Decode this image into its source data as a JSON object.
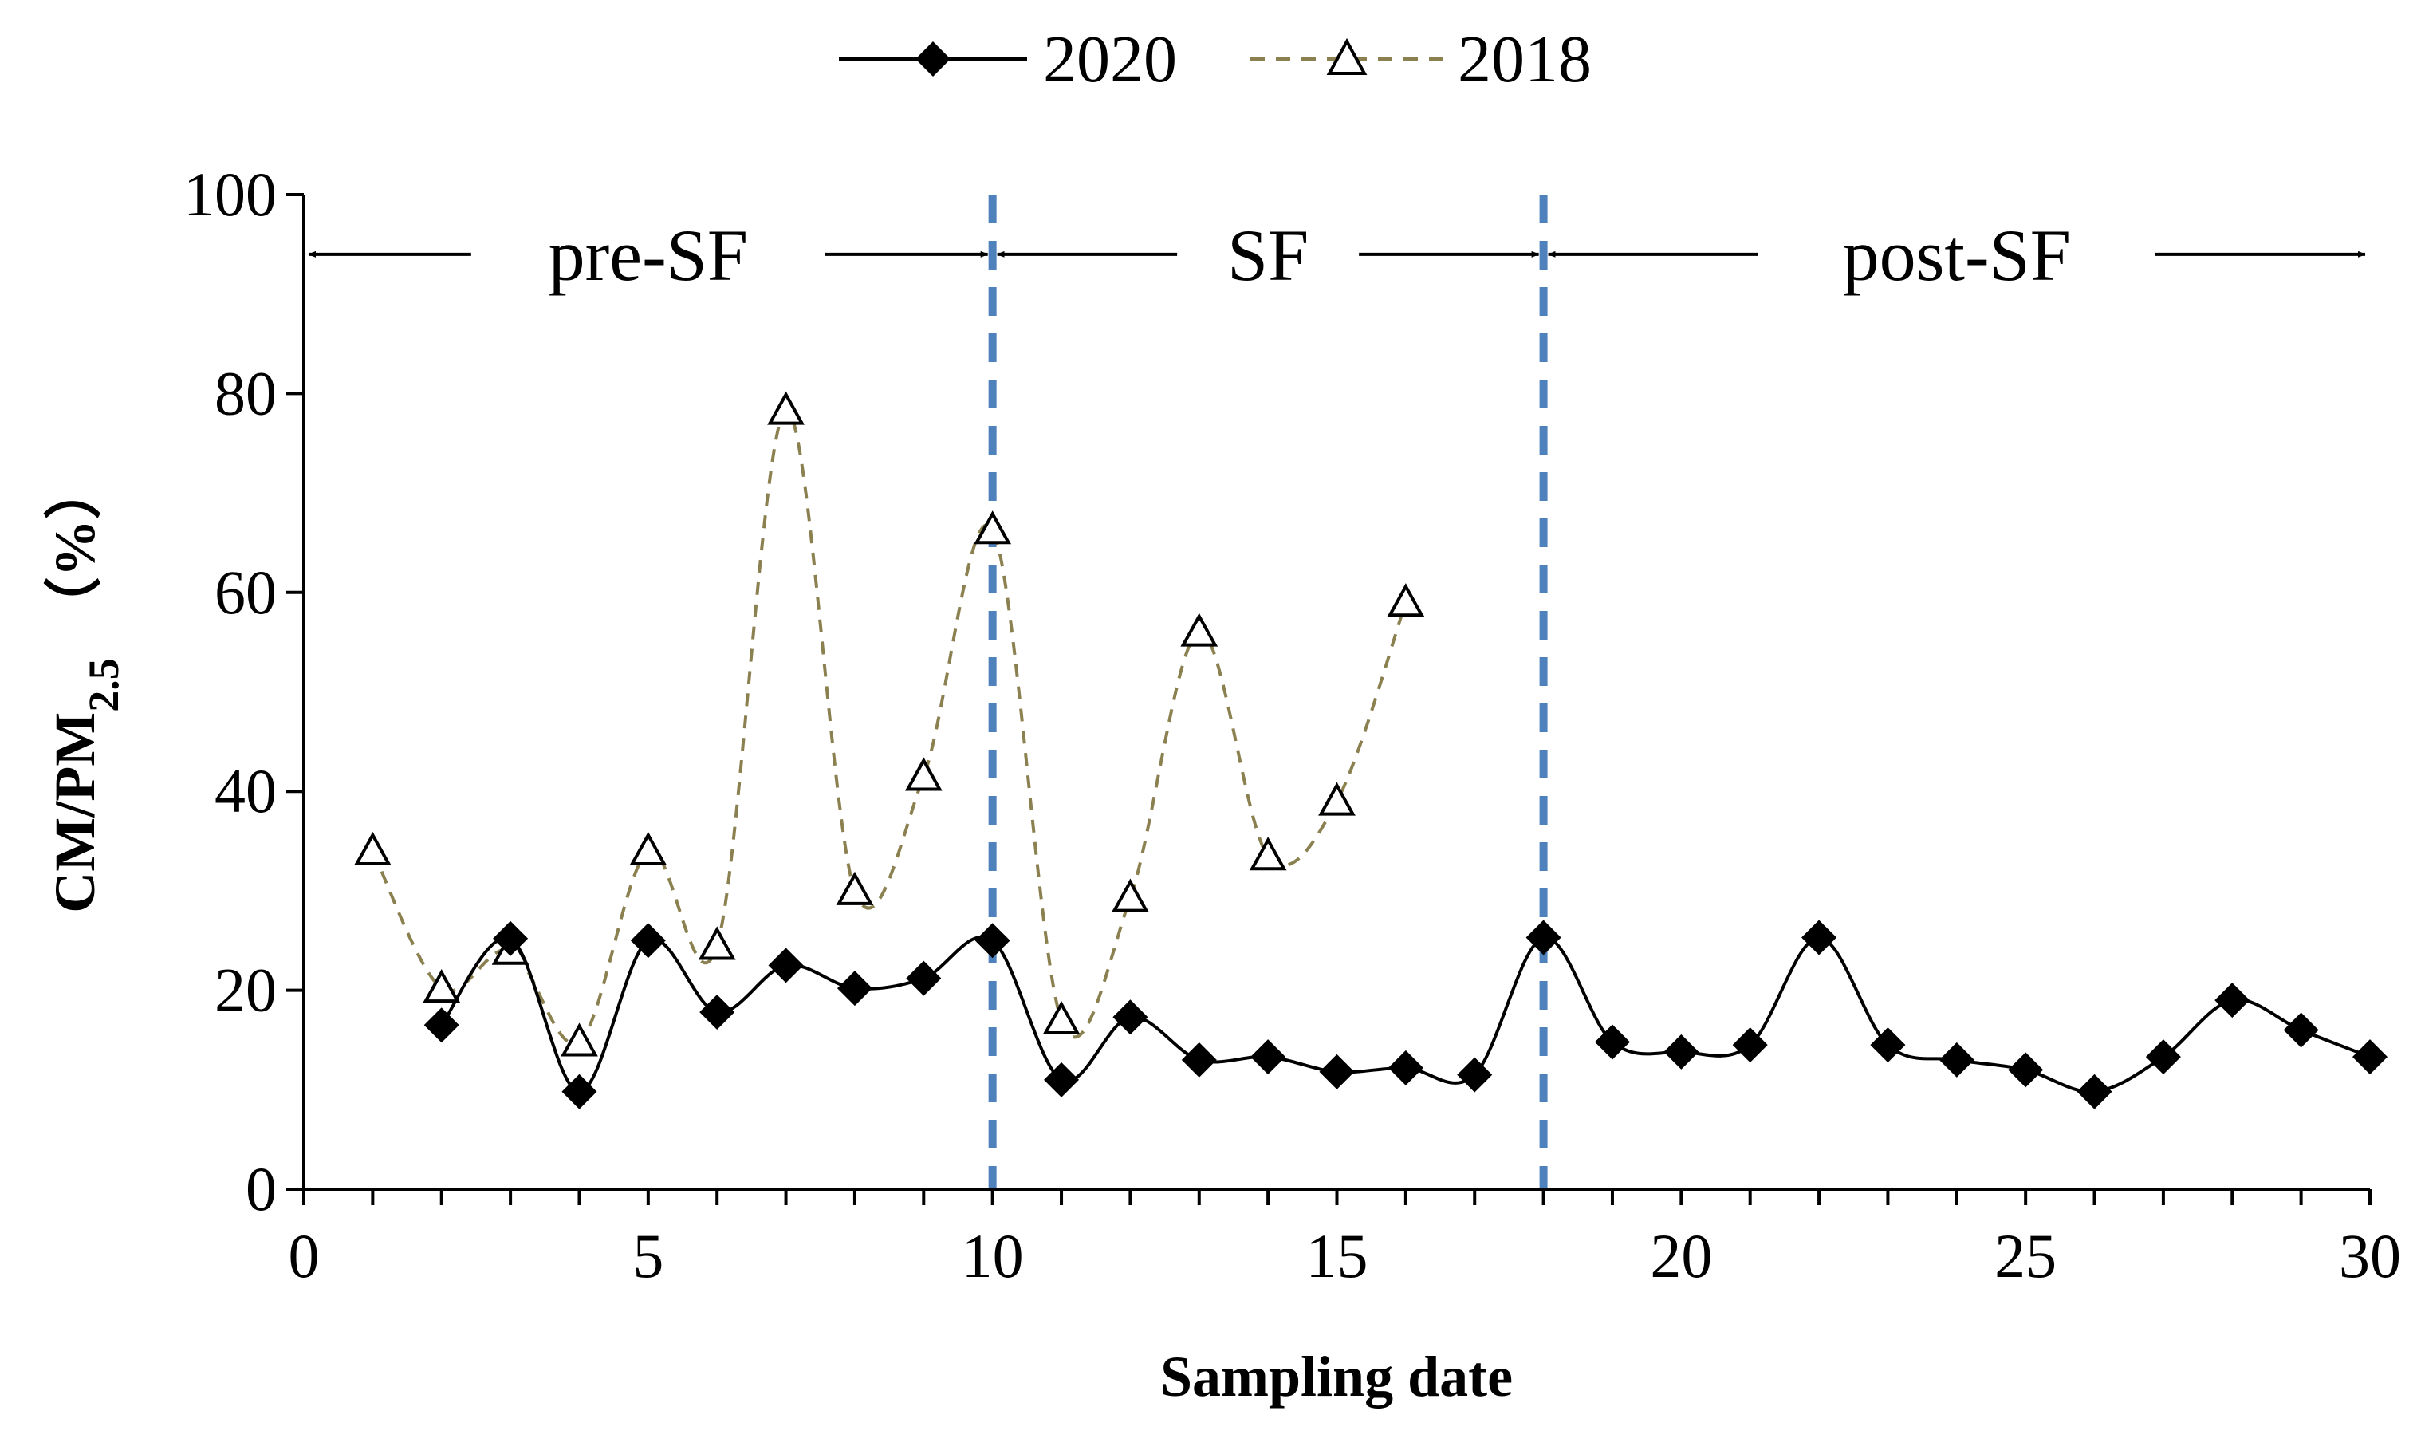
{
  "chart_data": {
    "type": "line",
    "title": "",
    "xlabel": "Sampling date",
    "ylabel": {
      "main": "CM/PM",
      "subscript": "2.5",
      "unit": "（%）"
    },
    "xlim": [
      0,
      30
    ],
    "ylim": [
      0,
      100
    ],
    "xticks": [
      0,
      5,
      10,
      15,
      20,
      25,
      30
    ],
    "yticks": [
      0,
      20,
      40,
      60,
      80,
      100
    ],
    "minor_x_ticks_every": 1,
    "grid": false,
    "legend_position": "top-center",
    "dividers": [
      {
        "x": 10,
        "color": "#4f81bd"
      },
      {
        "x": 18,
        "color": "#4f81bd"
      }
    ],
    "regions": [
      {
        "label": "pre-SF",
        "from": 0,
        "to": 10
      },
      {
        "label": "SF",
        "from": 10,
        "to": 18
      },
      {
        "label": "post-SF",
        "from": 18,
        "to": 30
      }
    ],
    "region_arrow_y": 94,
    "series": [
      {
        "name": "2020",
        "style": "solid",
        "marker": "diamond",
        "color": "#000000",
        "x": [
          2,
          3,
          4,
          5,
          6,
          7,
          8,
          9,
          10,
          11,
          12,
          13,
          14,
          15,
          16,
          17,
          18,
          19,
          20,
          21,
          22,
          23,
          24,
          25,
          26,
          27,
          28,
          29,
          30
        ],
        "values": [
          16.5,
          25.2,
          9.8,
          25.0,
          17.8,
          22.5,
          20.2,
          21.2,
          25.0,
          11.0,
          17.3,
          13.0,
          13.3,
          11.8,
          12.2,
          11.5,
          25.3,
          14.8,
          13.8,
          14.5,
          25.3,
          14.5,
          13.0,
          12.0,
          9.8,
          13.3,
          19.0,
          16.0,
          13.3
        ]
      },
      {
        "name": "2018",
        "style": "dashed",
        "marker": "triangle",
        "color": "#8b8050",
        "x": [
          1,
          2,
          3,
          4,
          5,
          6,
          7,
          8,
          9,
          10,
          11,
          12,
          13,
          14,
          15,
          16
        ],
        "values": [
          34.0,
          20.2,
          24.0,
          14.8,
          34.0,
          24.5,
          78.3,
          30.0,
          41.5,
          66.3,
          17.0,
          29.3,
          56.0,
          33.5,
          39.0,
          59.0
        ]
      }
    ]
  }
}
